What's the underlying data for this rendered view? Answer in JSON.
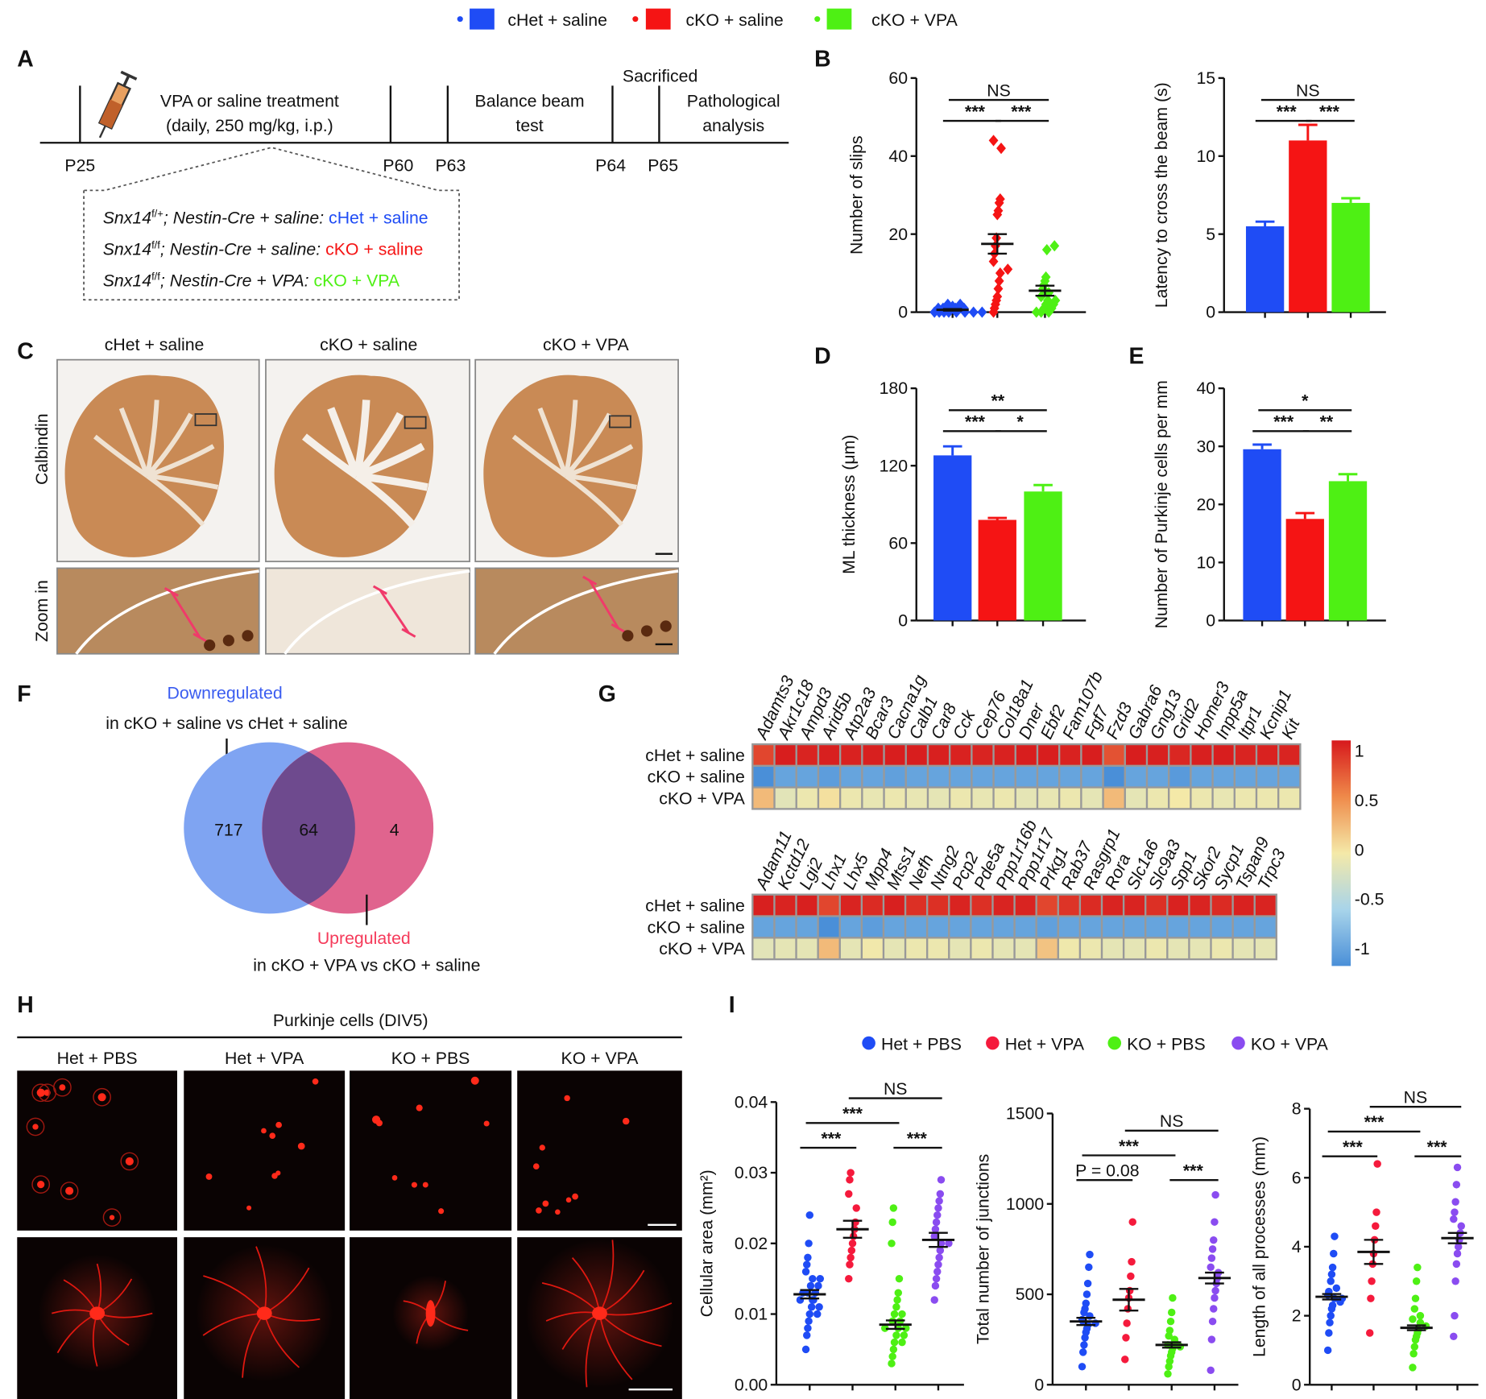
{
  "colors": {
    "cHet_saline": "#1f4cf5",
    "cKO_saline": "#f51414",
    "cKO_VPA": "#4ef014",
    "Het_PBS": "#1f4cf5",
    "Het_VPA": "#f51a3c",
    "KO_PBS": "#4ef014",
    "KO_VPA": "#8a4cf0"
  },
  "legend_top": [
    "cHet + saline",
    "cKO + saline",
    "cKO + VPA"
  ],
  "panel_letters": {
    "A": "A",
    "B": "B",
    "C": "C",
    "D": "D",
    "E": "E",
    "F": "F",
    "G": "G",
    "H": "H",
    "I": "I"
  },
  "panelA": {
    "treatment": "VPA or saline treatment",
    "dose": "(daily, 250 mg/kg, i.p.)",
    "balance1": "Balance beam",
    "balance2": "test",
    "sacrificed": "Sacrificed",
    "patho1": "Pathological",
    "patho2": "analysis",
    "days": [
      "P25",
      "P60",
      "P63",
      "P64",
      "P65"
    ],
    "groups": [
      {
        "geno": "Snx14",
        "sup": "f/+",
        "rest": "; Nestin-Cre + saline: ",
        "name": "cHet + saline"
      },
      {
        "geno": "Snx14",
        "sup": "f/f",
        "rest": "; Nestin-Cre + saline: ",
        "name": "cKO + saline"
      },
      {
        "geno": "Snx14",
        "sup": "f/f",
        "rest": "; Nestin-Cre + VPA: ",
        "name": "cKO + VPA"
      }
    ]
  },
  "panelC": {
    "columns": [
      "cHet + saline",
      "cKO + saline",
      "cKO + VPA"
    ],
    "row1": "Calbindin",
    "row2": "Zoom in"
  },
  "panelF": {
    "down_title": "Downregulated",
    "down_sub": "in cKO + saline vs cHet + saline",
    "up_title": "Upregulated",
    "up_sub": "in cKO + VPA vs cKO + saline",
    "left": "717",
    "overlap": "64",
    "right": "4"
  },
  "panelG": {
    "rows": [
      "cHet + saline",
      "cKO + saline",
      "cKO + VPA"
    ],
    "colorbar_ticks": [
      "1",
      "0.5",
      "0",
      "-0.5",
      "-1"
    ],
    "colorbar_colors": [
      "#d7191c",
      "#f4e9a8",
      "#4a8fd8"
    ],
    "heatmap1": {
      "genes": [
        "Adamts3",
        "Akr1c18",
        "Ampd3",
        "Arid5b",
        "Atp2a3",
        "Bcar3",
        "Cacna1g",
        "Calb1",
        "Car8",
        "Cck",
        "Cep76",
        "Col18a1",
        "Dner",
        "Ebf2",
        "Fam107b",
        "Fgf7",
        "Fzd3",
        "Gabra6",
        "Gng13",
        "Grid2",
        "Homer3",
        "Inpp5a",
        "Itpr1",
        "Kcnip1",
        "Kit"
      ],
      "values": [
        [
          0.8,
          0.98,
          0.95,
          0.97,
          0.96,
          0.97,
          0.98,
          0.98,
          0.97,
          0.96,
          0.95,
          0.96,
          0.98,
          0.98,
          0.96,
          0.98,
          0.75,
          0.98,
          0.97,
          0.94,
          0.97,
          0.98,
          0.95,
          0.96,
          0.95
        ],
        [
          -1,
          -0.85,
          -0.85,
          -0.9,
          -0.85,
          -0.85,
          -0.88,
          -0.85,
          -0.85,
          -0.85,
          -0.85,
          -0.85,
          -0.85,
          -0.85,
          -0.85,
          -0.85,
          -1,
          -0.85,
          -0.85,
          -0.92,
          -0.85,
          -0.85,
          -0.85,
          -0.85,
          -0.85
        ],
        [
          0.25,
          -0.12,
          -0.05,
          0.05,
          -0.05,
          -0.08,
          -0.05,
          -0.08,
          -0.1,
          -0.05,
          -0.08,
          -0.05,
          -0.1,
          -0.08,
          -0.05,
          -0.1,
          0.25,
          -0.1,
          -0.05,
          0.0,
          -0.05,
          -0.08,
          -0.05,
          -0.05,
          -0.05
        ]
      ]
    },
    "heatmap2": {
      "genes": [
        "Adam11",
        "Kctd12",
        "Lgi2",
        "Lhx1",
        "Lhx5",
        "Mpp4",
        "Mtss1",
        "Nefh",
        "Ntng2",
        "Pcp2",
        "Pde5a",
        "Ppp1r16b",
        "Ppp1r17",
        "Prkg1",
        "Rab37",
        "Rasgrp1",
        "Rora",
        "Slc1a6",
        "Slc9a3",
        "Spp1",
        "Skor2",
        "Sycp1",
        "Tspan9",
        "Trpc3"
      ],
      "values": [
        [
          0.97,
          0.95,
          0.97,
          0.8,
          0.95,
          0.92,
          0.97,
          0.9,
          0.9,
          0.95,
          0.9,
          0.95,
          0.95,
          0.8,
          0.88,
          0.92,
          0.95,
          0.95,
          0.9,
          0.96,
          0.95,
          0.92,
          0.96,
          0.95
        ],
        [
          -0.85,
          -0.85,
          -0.85,
          -1,
          -0.85,
          -0.9,
          -0.85,
          -0.85,
          -0.85,
          -0.85,
          -0.85,
          -0.85,
          -0.85,
          -0.88,
          -0.85,
          -0.85,
          -0.85,
          -0.85,
          -0.85,
          -0.85,
          -0.85,
          -0.85,
          -0.85,
          -0.85
        ],
        [
          -0.12,
          -0.1,
          -0.1,
          0.25,
          -0.1,
          -0.02,
          -0.1,
          -0.05,
          -0.05,
          -0.1,
          -0.05,
          -0.1,
          -0.1,
          0.2,
          -0.03,
          -0.05,
          -0.1,
          -0.1,
          -0.05,
          -0.1,
          -0.1,
          -0.05,
          -0.1,
          -0.1
        ]
      ]
    }
  },
  "panelH": {
    "title": "Purkinje cells (DIV5)",
    "columns": [
      "Het + PBS",
      "Het + VPA",
      "KO + PBS",
      "KO + VPA"
    ]
  },
  "legend_I": [
    "Het + PBS",
    "Het + VPA",
    "KO + PBS",
    "KO + VPA"
  ],
  "chart_data": [
    {
      "id": "B1",
      "type": "scatter",
      "ylabel": "Number of slips",
      "ylim": [
        0,
        60
      ],
      "yticks": [
        "0",
        "20",
        "40",
        "60"
      ],
      "tick_values": [
        0,
        20,
        40,
        60
      ],
      "groups": [
        "cHet + saline",
        "cKO + saline",
        "cKO + VPA"
      ],
      "marker": "diamond",
      "points": [
        [
          0,
          0,
          0,
          0,
          0,
          0,
          0,
          0,
          0.5,
          1,
          1,
          1,
          1,
          1.5,
          2,
          2
        ],
        [
          0,
          1,
          2,
          3,
          4,
          6,
          8,
          10,
          11,
          13,
          15,
          17,
          19,
          25,
          26,
          28,
          29,
          42,
          44
        ],
        [
          0,
          0,
          0,
          1,
          1,
          2,
          2,
          3,
          3,
          4,
          5,
          6,
          7,
          8,
          9,
          16,
          17
        ]
      ],
      "mean": [
        0.6,
        17.5,
        5.5
      ],
      "sem": [
        0.2,
        2.5,
        1.3
      ],
      "comparisons": [
        {
          "groups": [
            0,
            1
          ],
          "label": "***"
        },
        {
          "groups": [
            1,
            2
          ],
          "label": "***"
        },
        {
          "groups": [
            0,
            2
          ],
          "label": "NS"
        }
      ]
    },
    {
      "id": "B2",
      "type": "bar",
      "ylabel": "Latency to cross the beam (s)",
      "ylim": [
        0,
        15
      ],
      "yticks": [
        "0",
        "5",
        "10",
        "15"
      ],
      "tick_values": [
        0,
        5,
        10,
        15
      ],
      "groups": [
        "cHet + saline",
        "cKO + saline",
        "cKO + VPA"
      ],
      "values": [
        5.5,
        11,
        7
      ],
      "sem": [
        0.3,
        1.0,
        0.3
      ],
      "comparisons": [
        {
          "groups": [
            0,
            1
          ],
          "label": "***"
        },
        {
          "groups": [
            1,
            2
          ],
          "label": "***"
        },
        {
          "groups": [
            0,
            2
          ],
          "label": "NS"
        }
      ]
    },
    {
      "id": "D",
      "type": "bar",
      "ylabel": "ML thickness (μm)",
      "ylim": [
        0,
        180
      ],
      "yticks": [
        "0",
        "60",
        "120",
        "180"
      ],
      "tick_values": [
        0,
        60,
        120,
        180
      ],
      "groups": [
        "cHet + saline",
        "cKO + saline",
        "cKO + VPA"
      ],
      "values": [
        128,
        78,
        100
      ],
      "sem": [
        7,
        1.5,
        5
      ],
      "comparisons": [
        {
          "groups": [
            0,
            1
          ],
          "label": "***"
        },
        {
          "groups": [
            1,
            2
          ],
          "label": "*"
        },
        {
          "groups": [
            0,
            2
          ],
          "label": "**"
        }
      ]
    },
    {
      "id": "E",
      "type": "bar",
      "ylabel": "Number of  Purkinje cells per mm",
      "ylim": [
        0,
        40
      ],
      "yticks": [
        "0",
        "10",
        "20",
        "30",
        "40"
      ],
      "tick_values": [
        0,
        10,
        20,
        30,
        40
      ],
      "groups": [
        "cHet + saline",
        "cKO + saline",
        "cKO + VPA"
      ],
      "values": [
        29.5,
        17.5,
        24
      ],
      "sem": [
        0.8,
        1.0,
        1.2
      ],
      "comparisons": [
        {
          "groups": [
            0,
            1
          ],
          "label": "***"
        },
        {
          "groups": [
            1,
            2
          ],
          "label": "**"
        },
        {
          "groups": [
            0,
            2
          ],
          "label": "*"
        }
      ]
    },
    {
      "id": "I1",
      "type": "scatter",
      "ylabel": "Cellular area (mm²)",
      "ylim": [
        0,
        0.04
      ],
      "yticks": [
        "0.00",
        "0.01",
        "0.02",
        "0.03",
        "0.04"
      ],
      "tick_values": [
        0,
        0.01,
        0.02,
        0.03,
        0.04
      ],
      "groups": [
        "Het + PBS",
        "Het + VPA",
        "KO + PBS",
        "KO + VPA"
      ],
      "marker": "circle",
      "points": [
        [
          0.005,
          0.007,
          0.008,
          0.009,
          0.01,
          0.01,
          0.011,
          0.011,
          0.012,
          0.012,
          0.012,
          0.013,
          0.013,
          0.013,
          0.014,
          0.014,
          0.015,
          0.015,
          0.016,
          0.017,
          0.018,
          0.02,
          0.024
        ],
        [
          0.015,
          0.017,
          0.018,
          0.019,
          0.02,
          0.021,
          0.022,
          0.023,
          0.025,
          0.027,
          0.029,
          0.03
        ],
        [
          0.003,
          0.004,
          0.005,
          0.006,
          0.006,
          0.007,
          0.007,
          0.008,
          0.008,
          0.008,
          0.009,
          0.009,
          0.01,
          0.01,
          0.011,
          0.012,
          0.013,
          0.015,
          0.02,
          0.023,
          0.025
        ],
        [
          0.012,
          0.014,
          0.015,
          0.016,
          0.017,
          0.018,
          0.019,
          0.02,
          0.02,
          0.021,
          0.022,
          0.023,
          0.024,
          0.025,
          0.026,
          0.027,
          0.029
        ]
      ],
      "mean": [
        0.0128,
        0.022,
        0.0085,
        0.0205
      ],
      "sem": [
        0.0006,
        0.0012,
        0.0006,
        0.001
      ],
      "comparisons": [
        {
          "groups": [
            0,
            1
          ],
          "label": "***"
        },
        {
          "groups": [
            2,
            3
          ],
          "label": "***"
        },
        {
          "groups": [
            0,
            2
          ],
          "label": "***"
        },
        {
          "groups": [
            1,
            3
          ],
          "label": "NS"
        }
      ]
    },
    {
      "id": "I2",
      "type": "scatter",
      "ylabel": "Total number of junctions",
      "ylim": [
        0,
        1500
      ],
      "yticks": [
        "0",
        "500",
        "1000",
        "1500"
      ],
      "tick_values": [
        0,
        500,
        1000,
        1500
      ],
      "groups": [
        "Het + PBS",
        "Het + VPA",
        "KO + PBS",
        "KO + VPA"
      ],
      "marker": "circle",
      "points": [
        [
          100,
          180,
          220,
          260,
          290,
          310,
          330,
          340,
          350,
          360,
          380,
          400,
          420,
          450,
          500,
          560,
          650,
          720
        ],
        [
          140,
          260,
          340,
          420,
          480,
          520,
          600,
          680,
          900
        ],
        [
          60,
          100,
          130,
          160,
          180,
          200,
          210,
          220,
          230,
          250,
          270,
          300,
          350,
          400,
          480
        ],
        [
          80,
          250,
          350,
          420,
          480,
          520,
          560,
          590,
          620,
          650,
          700,
          750,
          800,
          900,
          1050
        ]
      ],
      "mean": [
        350,
        470,
        220,
        590
      ],
      "sem": [
        20,
        60,
        15,
        30
      ],
      "comparisons": [
        {
          "groups": [
            0,
            1
          ],
          "label": "P = 0.08"
        },
        {
          "groups": [
            2,
            3
          ],
          "label": "***"
        },
        {
          "groups": [
            0,
            2
          ],
          "label": "***"
        },
        {
          "groups": [
            1,
            3
          ],
          "label": "NS"
        }
      ]
    },
    {
      "id": "I3",
      "type": "scatter",
      "ylabel": "Length of all processes (mm)",
      "ylim": [
        0,
        8
      ],
      "yticks": [
        "0",
        "2",
        "4",
        "6",
        "8"
      ],
      "tick_values": [
        0,
        2,
        4,
        6,
        8
      ],
      "groups": [
        "Het + PBS",
        "Het + VPA",
        "KO + PBS",
        "KO + VPA"
      ],
      "marker": "circle",
      "points": [
        [
          1.0,
          1.5,
          1.8,
          2.0,
          2.2,
          2.3,
          2.4,
          2.5,
          2.5,
          2.6,
          2.7,
          2.8,
          3.0,
          3.2,
          3.4,
          3.8,
          4.3
        ],
        [
          1.5,
          2.5,
          3.0,
          3.5,
          3.8,
          4.2,
          4.6,
          5.0,
          6.4
        ],
        [
          0.5,
          0.9,
          1.1,
          1.3,
          1.4,
          1.5,
          1.6,
          1.7,
          1.8,
          1.9,
          2.0,
          2.2,
          2.5,
          3.0,
          3.4
        ],
        [
          1.4,
          2.0,
          3.0,
          3.5,
          3.8,
          4.0,
          4.2,
          4.4,
          4.6,
          4.8,
          5.0,
          5.3,
          5.8,
          6.3
        ]
      ],
      "mean": [
        2.55,
        3.85,
        1.65,
        4.25
      ],
      "sem": [
        0.08,
        0.35,
        0.07,
        0.15
      ],
      "comparisons": [
        {
          "groups": [
            0,
            1
          ],
          "label": "***"
        },
        {
          "groups": [
            2,
            3
          ],
          "label": "***"
        },
        {
          "groups": [
            0,
            2
          ],
          "label": "***"
        },
        {
          "groups": [
            1,
            3
          ],
          "label": "NS"
        }
      ]
    }
  ]
}
